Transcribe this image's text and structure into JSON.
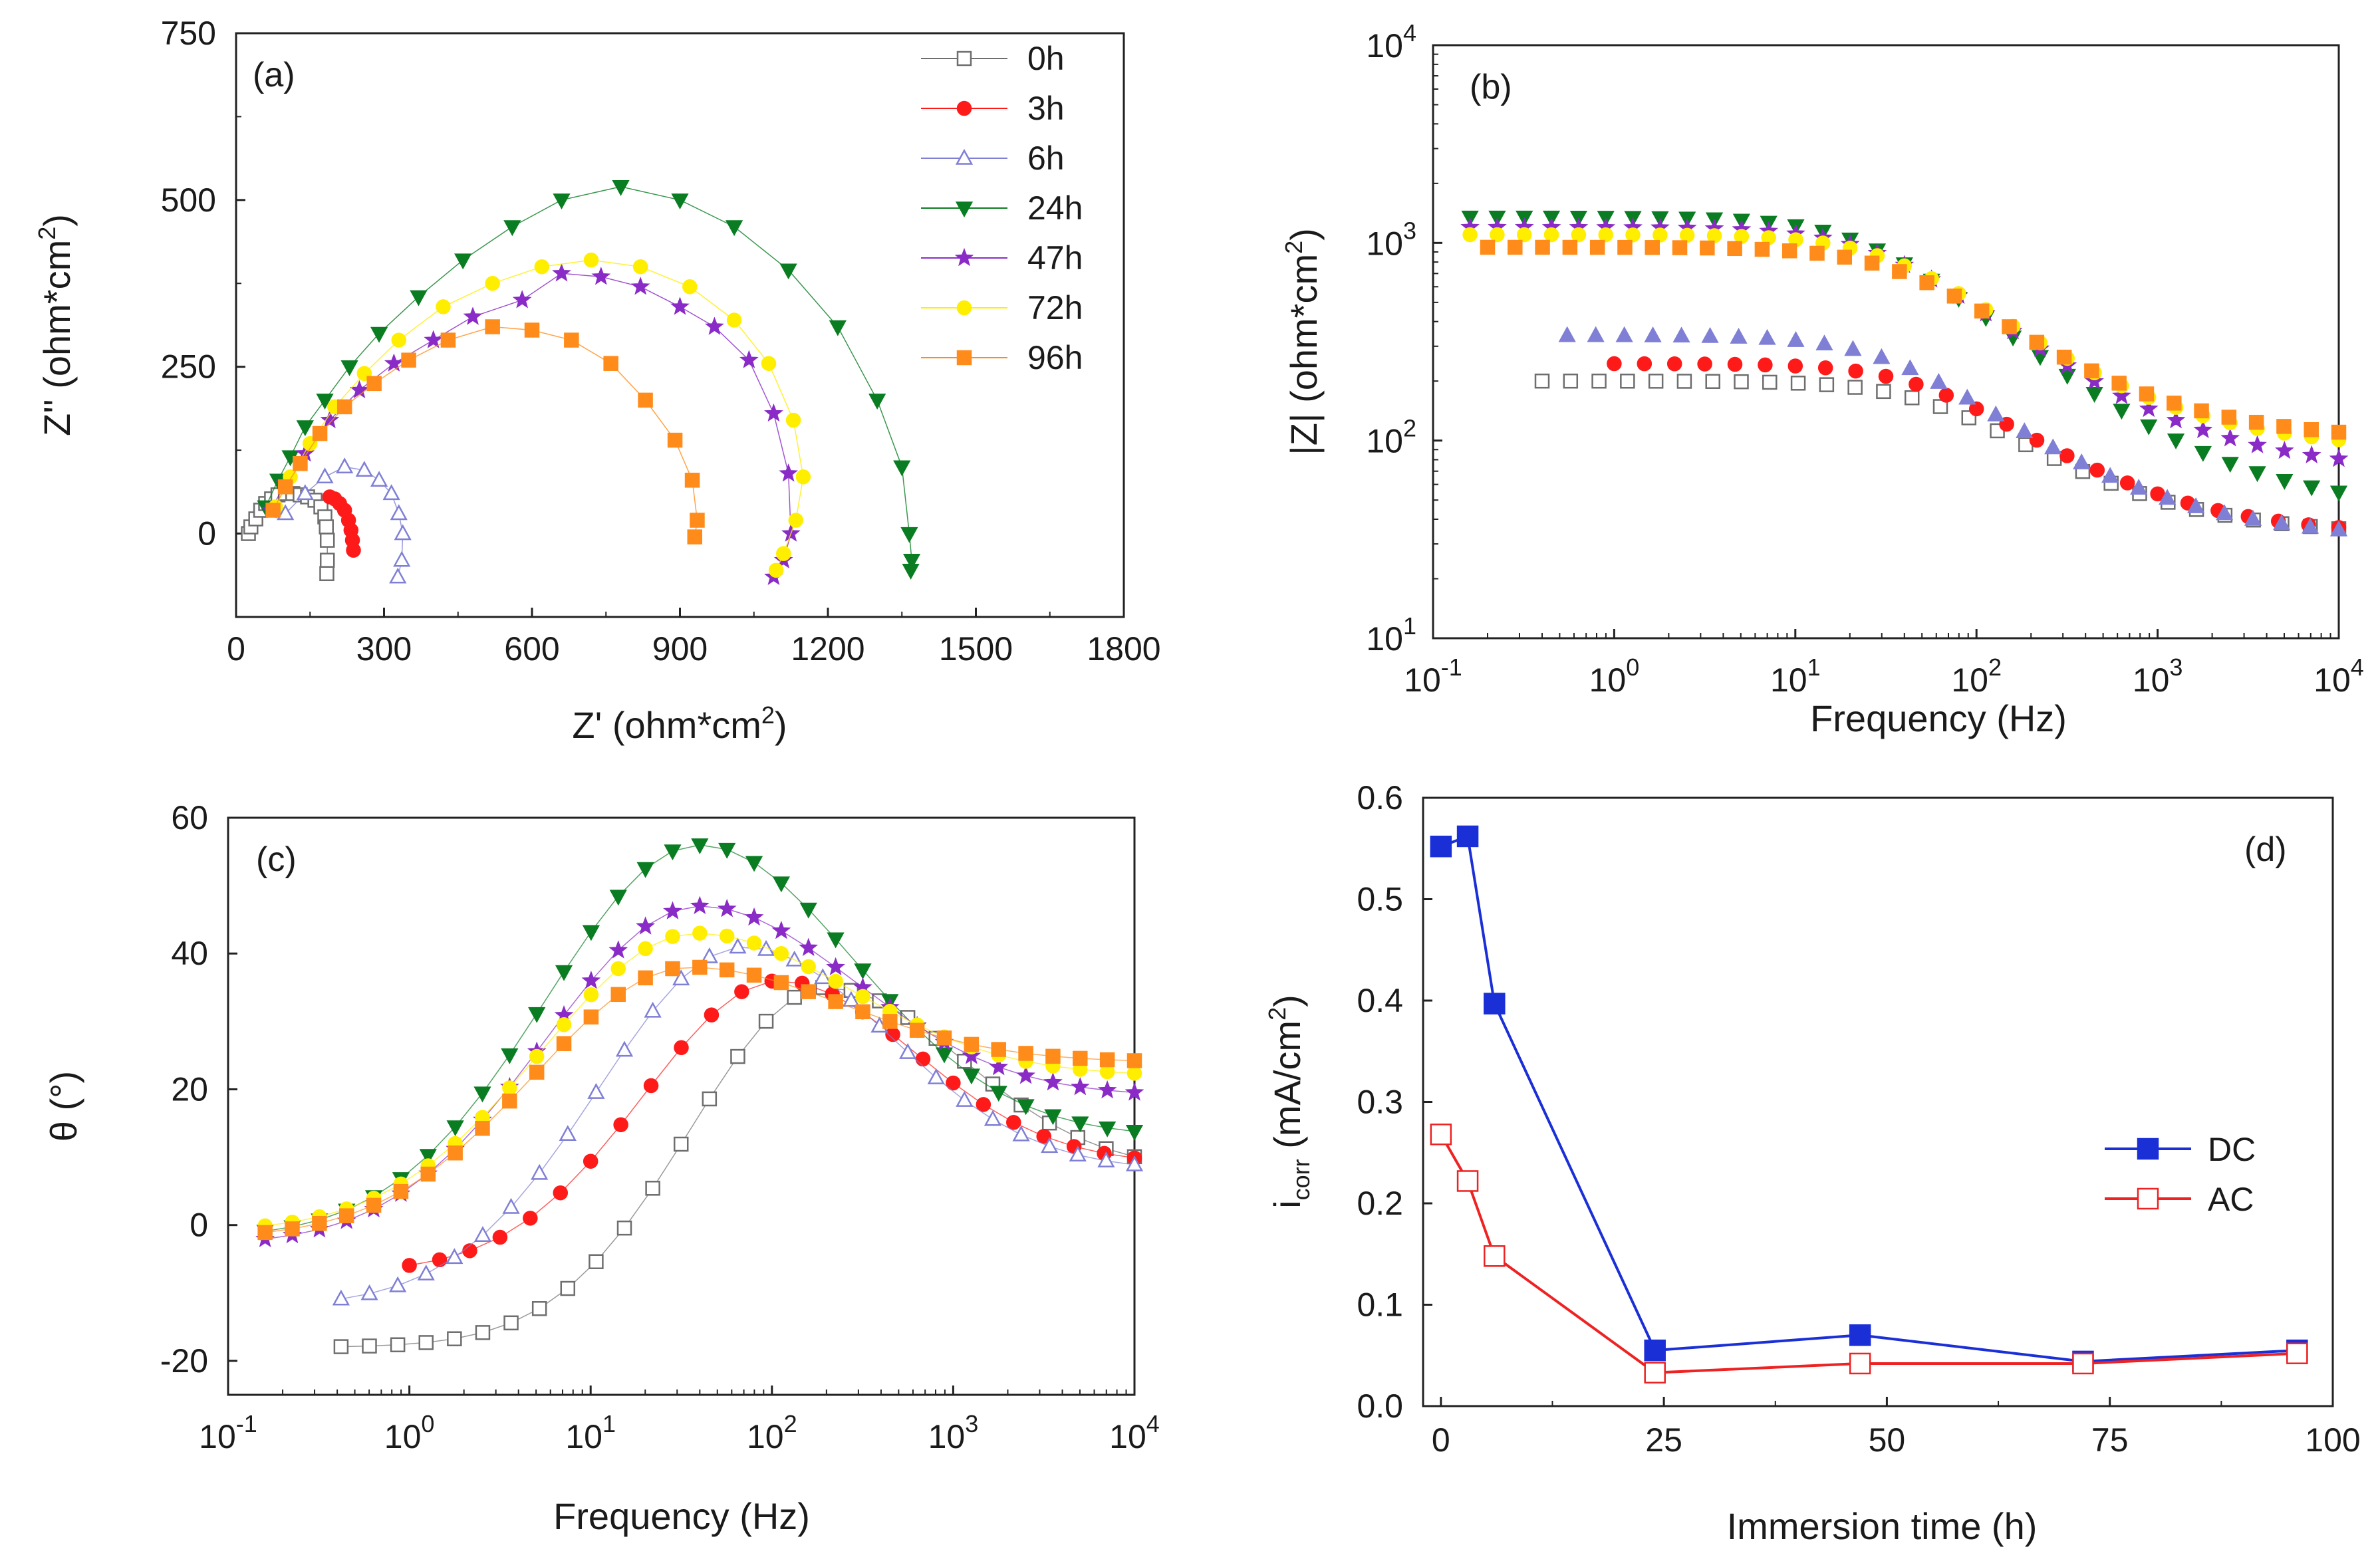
{
  "figure": {
    "panels": [
      "(a)",
      "(b)",
      "(c)",
      "(d)"
    ]
  },
  "series_styles": [
    {
      "name": "0h",
      "color": "#6e6e6e",
      "marker": "square-open"
    },
    {
      "name": "3h",
      "color": "#ff1a1a",
      "marker": "circle"
    },
    {
      "name": "6h",
      "color": "#7f7fd6",
      "marker": "triangle-open"
    },
    {
      "name": "24h",
      "color": "#0a7d22",
      "marker": "triangle-down"
    },
    {
      "name": "47h",
      "color": "#8a2bc7",
      "marker": "star"
    },
    {
      "name": "72h",
      "color": "#ffee00",
      "marker": "circle"
    },
    {
      "name": "96h",
      "color": "#ff8c1a",
      "marker": "square"
    }
  ],
  "chart_data": [
    {
      "id": "a",
      "type": "scatter",
      "panel_label": "(a)",
      "xlabel": "Z' (ohm*cm",
      "xlabel_sup": "2",
      "xlabel_end": ")",
      "ylabel": "Z'' (ohm*cm",
      "ylabel_sup": "2",
      "ylabel_end": ")",
      "xlim": [
        0,
        1800
      ],
      "ylim": [
        -125,
        750
      ],
      "xticks": [
        0,
        300,
        600,
        900,
        1200,
        1500,
        1800
      ],
      "yticks": [
        0,
        250,
        500,
        750
      ],
      "legend": [
        "0h",
        "3h",
        "6h",
        "24h",
        "47h",
        "72h",
        "96h"
      ],
      "series": [
        {
          "name": "0h",
          "x": [
            25,
            30,
            40,
            50,
            60,
            72,
            85,
            100,
            115,
            130,
            145,
            160,
            172,
            180,
            183,
            185,
            185,
            184
          ],
          "y": [
            0,
            10,
            22,
            35,
            45,
            52,
            58,
            60,
            60,
            58,
            55,
            50,
            40,
            25,
            10,
            -10,
            -40,
            -60
          ]
        },
        {
          "name": "3h",
          "x": [
            190,
            200,
            210,
            220,
            228,
            233,
            236,
            238
          ],
          "y": [
            55,
            52,
            45,
            35,
            20,
            5,
            -10,
            -25
          ]
        },
        {
          "name": "6h",
          "x": [
            100,
            140,
            180,
            220,
            260,
            290,
            315,
            330,
            338,
            336,
            328
          ],
          "y": [
            30,
            60,
            85,
            100,
            95,
            80,
            60,
            30,
            0,
            -40,
            -65
          ]
        },
        {
          "name": "24h",
          "x": [
            60,
            85,
            110,
            140,
            180,
            230,
            290,
            370,
            460,
            560,
            660,
            780,
            900,
            1010,
            1120,
            1220,
            1300,
            1350,
            1365,
            1370,
            1368
          ],
          "y": [
            40,
            80,
            115,
            160,
            200,
            250,
            300,
            355,
            410,
            460,
            500,
            520,
            500,
            460,
            395,
            310,
            200,
            100,
            0,
            -40,
            -55
          ]
        },
        {
          "name": "47h",
          "x": [
            70,
            100,
            140,
            190,
            250,
            320,
            400,
            480,
            580,
            660,
            740,
            820,
            900,
            970,
            1040,
            1090,
            1120,
            1125,
            1110,
            1090
          ],
          "y": [
            35,
            75,
            120,
            170,
            215,
            255,
            290,
            325,
            350,
            390,
            385,
            370,
            340,
            310,
            260,
            180,
            90,
            0,
            -40,
            -65
          ]
        },
        {
          "name": "72h",
          "x": [
            80,
            110,
            150,
            200,
            260,
            330,
            420,
            520,
            620,
            720,
            820,
            920,
            1010,
            1080,
            1130,
            1150,
            1135,
            1110,
            1095
          ],
          "y": [
            40,
            85,
            135,
            190,
            240,
            290,
            340,
            375,
            400,
            410,
            400,
            370,
            320,
            255,
            170,
            85,
            20,
            -30,
            -55
          ]
        },
        {
          "name": "96h",
          "x": [
            75,
            100,
            130,
            170,
            220,
            280,
            350,
            430,
            520,
            600,
            680,
            760,
            830,
            890,
            925,
            935,
            930
          ],
          "y": [
            35,
            70,
            105,
            150,
            190,
            225,
            260,
            290,
            310,
            305,
            290,
            255,
            200,
            140,
            80,
            20,
            -5
          ]
        }
      ]
    },
    {
      "id": "b",
      "type": "scatter",
      "panel_label": "(b)",
      "xlabel": "Frequency (Hz)",
      "ylabel": "|Z| (ohm*cm",
      "ylabel_sup": "2",
      "ylabel_end": ")",
      "xscale": "log",
      "yscale": "log",
      "xlim": [
        0.1,
        10000
      ],
      "ylim": [
        10,
        10000
      ],
      "xtick_exponents": [
        -1,
        0,
        1,
        2,
        3,
        4
      ],
      "ytick_exponents": [
        1,
        2,
        3,
        4
      ],
      "series": [
        {
          "name": "0h",
          "f_start": 0.4,
          "n": 29,
          "levels": [
            200,
            200,
            33
          ],
          "fc": 60
        },
        {
          "name": "3h",
          "f_start": 1.0,
          "n": 25,
          "levels": [
            245,
            245,
            33
          ],
          "fc": 55
        },
        {
          "name": "6h",
          "f_start": 0.55,
          "n": 28,
          "levels": [
            340,
            340,
            32
          ],
          "fc": 35
        },
        {
          "name": "24h",
          "f_start": 0.16,
          "n": 33,
          "levels": [
            1350,
            1350,
            44
          ],
          "fc": 25
        },
        {
          "name": "47h",
          "f_start": 0.16,
          "n": 33,
          "levels": [
            1200,
            1200,
            70
          ],
          "fc": 30
        },
        {
          "name": "72h",
          "f_start": 0.16,
          "n": 33,
          "levels": [
            1100,
            1100,
            90
          ],
          "fc": 35
        },
        {
          "name": "96h",
          "f_start": 0.2,
          "n": 32,
          "levels": [
            950,
            950,
            100
          ],
          "fc": 40
        }
      ]
    },
    {
      "id": "c",
      "type": "scatter",
      "panel_label": "(c)",
      "xlabel": "Frequency (Hz)",
      "ylabel": "θ (°)",
      "xscale": "log",
      "xlim": [
        0.1,
        10000
      ],
      "ylim": [
        -25,
        60
      ],
      "yticks": [
        -20,
        0,
        20,
        40,
        60
      ],
      "xtick_exponents": [
        -1,
        0,
        1,
        2,
        3,
        4
      ],
      "series": [
        {
          "name": "0h",
          "f_start": 0.42,
          "n": 29,
          "peak_f": 200,
          "peak": 35,
          "low": -18,
          "high": 8,
          "width": 0.75
        },
        {
          "name": "3h",
          "f_start": 1.0,
          "n": 25,
          "peak_f": 110,
          "peak": 36,
          "low": -7,
          "high": 9,
          "width": 0.75
        },
        {
          "name": "6h",
          "f_start": 0.42,
          "n": 29,
          "peak_f": 70,
          "peak": 41,
          "low": -12,
          "high": 8,
          "width": 0.8
        },
        {
          "name": "24h",
          "f_start": 0.16,
          "n": 33,
          "peak_f": 40,
          "peak": 56,
          "low": -2,
          "high": 13,
          "width": 0.85
        },
        {
          "name": "47h",
          "f_start": 0.16,
          "n": 33,
          "peak_f": 40,
          "peak": 47,
          "low": -3,
          "high": 19,
          "width": 0.85
        },
        {
          "name": "72h",
          "f_start": 0.16,
          "n": 33,
          "peak_f": 38,
          "peak": 43,
          "low": -1,
          "high": 22,
          "width": 0.85
        },
        {
          "name": "96h",
          "f_start": 0.16,
          "n": 33,
          "peak_f": 35,
          "peak": 38,
          "low": -2,
          "high": 24,
          "width": 0.85
        }
      ]
    },
    {
      "id": "d",
      "type": "line",
      "panel_label": "(d)",
      "xlabel": "Immersion time (h)",
      "ylabel_main": "i",
      "ylabel_sub": "corr",
      "ylabel_rest": " (mA/cm",
      "ylabel_sup": "2",
      "ylabel_end": ")",
      "xlim": [
        -2,
        100
      ],
      "ylim": [
        0,
        0.6
      ],
      "xticks": [
        0,
        25,
        50,
        75,
        100
      ],
      "yticks": [
        0.0,
        0.1,
        0.2,
        0.3,
        0.4,
        0.5,
        0.6
      ],
      "legend": [
        "DC",
        "AC"
      ],
      "series": [
        {
          "name": "DC",
          "color": "#1a2fd6",
          "marker": "square",
          "x": [
            0,
            3,
            6,
            24,
            47,
            72,
            96
          ],
          "y": [
            0.552,
            0.562,
            0.397,
            0.055,
            0.07,
            0.044,
            0.055
          ]
        },
        {
          "name": "AC",
          "color": "#ee2222",
          "marker": "square-open",
          "x": [
            0,
            3,
            6,
            24,
            47,
            72,
            96
          ],
          "y": [
            0.268,
            0.222,
            0.148,
            0.033,
            0.042,
            0.042,
            0.052
          ]
        }
      ]
    }
  ]
}
